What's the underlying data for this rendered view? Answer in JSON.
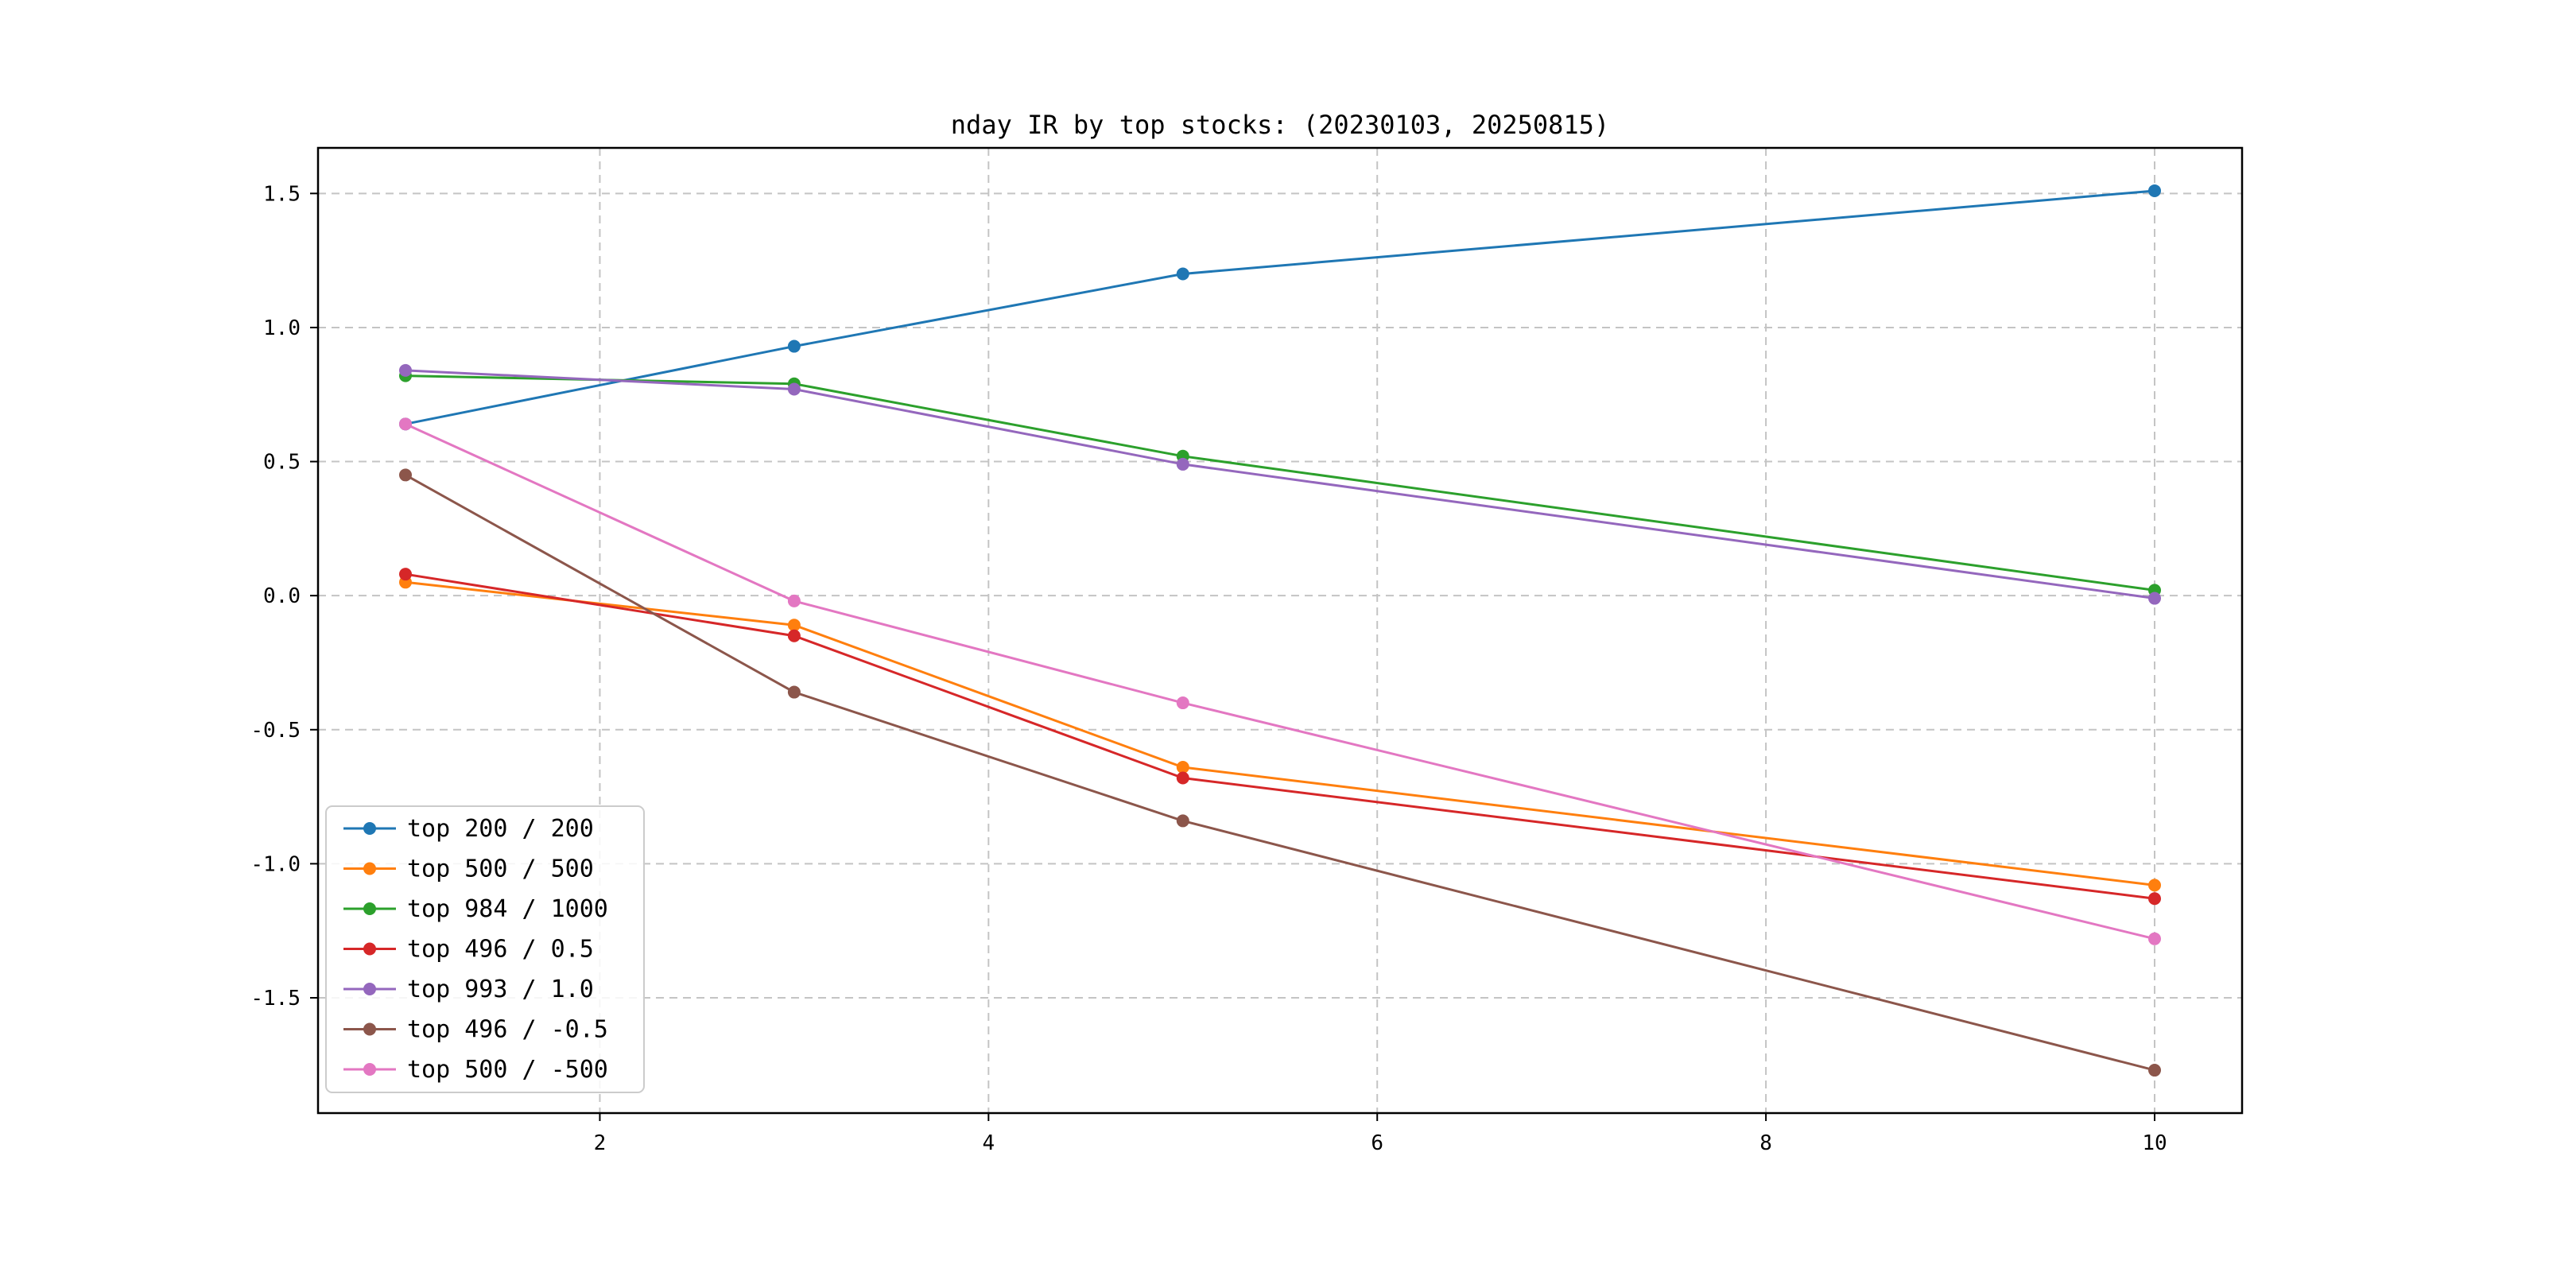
{
  "chart_data": {
    "type": "line",
    "title": "nday IR by top stocks: (20230103, 20250815)",
    "x": [
      1,
      3,
      5,
      10
    ],
    "series": [
      {
        "name": "top 200 / 200",
        "color": "#1f77b4",
        "values": [
          0.64,
          0.93,
          1.2,
          1.51
        ]
      },
      {
        "name": "top 500 / 500",
        "color": "#ff7f0e",
        "values": [
          0.05,
          -0.11,
          -0.64,
          -1.08
        ]
      },
      {
        "name": "top 984 / 1000",
        "color": "#2ca02c",
        "values": [
          0.82,
          0.79,
          0.52,
          0.02
        ]
      },
      {
        "name": "top 496 / 0.5",
        "color": "#d62728",
        "values": [
          0.08,
          -0.15,
          -0.68,
          -1.13
        ]
      },
      {
        "name": "top 993 / 1.0",
        "color": "#9467bd",
        "values": [
          0.84,
          0.77,
          0.49,
          -0.01
        ]
      },
      {
        "name": "top 496 / -0.5",
        "color": "#8c564b",
        "values": [
          0.45,
          -0.36,
          -0.84,
          -1.77
        ]
      },
      {
        "name": "top 500 / -500",
        "color": "#e377c2",
        "values": [
          0.64,
          -0.02,
          -0.4,
          -1.28
        ]
      }
    ],
    "x_ticks": [
      2,
      4,
      6,
      8,
      10
    ],
    "x_tick_labels": [
      "2",
      "4",
      "6",
      "8",
      "10"
    ],
    "y_ticks": [
      -1.5,
      -1.0,
      -0.5,
      0.0,
      0.5,
      1.0,
      1.5
    ],
    "y_tick_labels": [
      "-1.5",
      "-1.0",
      "-0.5",
      "0.0",
      "0.5",
      "1.0",
      "1.5"
    ],
    "xlim": [
      0.55,
      10.45
    ],
    "ylim": [
      -1.93,
      1.67
    ],
    "grid": true,
    "legend_position": "lower left",
    "marker": "o",
    "line_width": 3,
    "marker_radius": 8,
    "frame_color": "#000000",
    "grid_color": "#c4c4c4",
    "background_color": "#ffffff"
  }
}
